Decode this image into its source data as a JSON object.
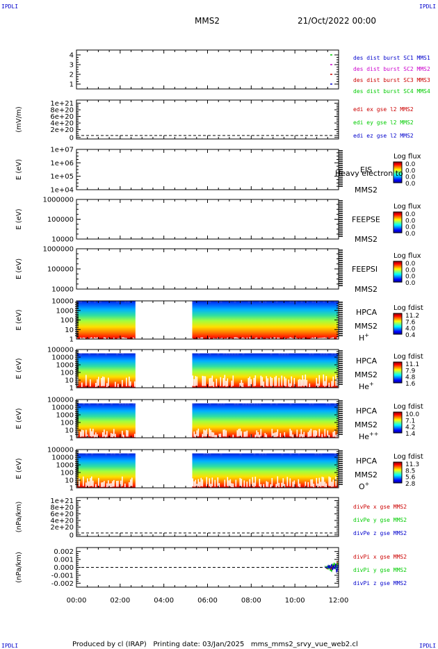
{
  "corner_labels": {
    "top_left": "IPDLI",
    "top_right": "IPDLI",
    "bottom_left": "IPDLI",
    "bottom_right": "IPDLI"
  },
  "header": {
    "spacecraft": "MMS2",
    "datetime": "21/Oct/2022 00:00"
  },
  "footer": {
    "text": "Produced by cl (IRAP)   Printing date: 03/Jan/2025   mms_mms2_srvy_vue_web2.cl"
  },
  "x_axis": {
    "ticks": [
      "00:00",
      "02:00",
      "04:00",
      "06:00",
      "08:00",
      "10:00",
      "12:00"
    ]
  },
  "colors": {
    "black": "#000000",
    "blue": "#0000cc",
    "magenta": "#cc00cc",
    "red": "#cc0000",
    "green": "#00cc00"
  },
  "chart_data": [
    {
      "id": "p1",
      "type": "line",
      "yticks": [
        "1",
        "2",
        "3",
        "4"
      ],
      "ylim": [
        0.5,
        4.5
      ],
      "legend": [
        {
          "label": "des dist burst SC1 MMS1",
          "color": "#0000cc"
        },
        {
          "label": "des dist burst SC2 MMS2",
          "color": "#cc00cc"
        },
        {
          "label": "des dist burst SC3 MMS3",
          "color": "#cc0000"
        },
        {
          "label": "des dist burst SC4 MMS4",
          "color": "#00cc00"
        }
      ]
    },
    {
      "id": "p2",
      "type": "line",
      "ylabel": "(mV/m)",
      "yticks": [
        "1e+21",
        "8e+20",
        "6e+20",
        "4e+20",
        "2e+20",
        "0"
      ],
      "legend": [
        {
          "label": "edi ex gse l2 MMS2",
          "color": "#cc0000"
        },
        {
          "label": "edi ey gse l2 MMS2",
          "color": "#00cc00"
        },
        {
          "label": "edi ez gse l2 MMS2",
          "color": "#0000cc"
        }
      ]
    },
    {
      "id": "p3",
      "type": "heatmap",
      "ylabel": "E (eV)",
      "yticks": [
        "1e+07",
        "1e+06",
        "1e+05",
        "1e+04"
      ],
      "instrument": "EIS",
      "sc": "MMS2",
      "overlay": "Heavy electron to",
      "cb_title": "Log flux",
      "cb_ticks": [
        "0.0",
        "0.0",
        "0.0",
        "0.0"
      ]
    },
    {
      "id": "p4",
      "type": "heatmap",
      "ylabel": "E (eV)",
      "yticks": [
        "1000000",
        "100000",
        "10000"
      ],
      "instrument": "FEEPSE",
      "sc": "MMS2",
      "cb_title": "Log flux",
      "cb_ticks": [
        "0.0",
        "0.0",
        "0.0",
        "0.0"
      ]
    },
    {
      "id": "p5",
      "type": "heatmap",
      "ylabel": "E (eV)",
      "yticks": [
        "1000000",
        "100000",
        "10000"
      ],
      "instrument": "FEEPSI",
      "sc": "MMS2",
      "cb_title": "Log flux",
      "cb_ticks": [
        "0.0",
        "0.0",
        "0.0",
        "0.0"
      ]
    },
    {
      "id": "p6",
      "type": "heatmap",
      "ylabel": "E (eV)",
      "yticks": [
        "10000",
        "1000",
        "100",
        "10",
        "1"
      ],
      "instrument": "HPCA",
      "sc": "MMS2",
      "species": "H",
      "species_sup": "+",
      "cb_title": "Log fdist",
      "cb_ticks": [
        "11.2",
        "7.6",
        "4.0",
        "0.4"
      ],
      "gap_hours": [
        2.7,
        5.3
      ]
    },
    {
      "id": "p7",
      "type": "heatmap",
      "ylabel": "E (eV)",
      "yticks": [
        "100000",
        "10000",
        "1000",
        "100",
        "10",
        "1"
      ],
      "instrument": "HPCA",
      "sc": "MMS2",
      "species": "He",
      "species_sup": "+",
      "cb_title": "Log fdist",
      "cb_ticks": [
        "11.1",
        "7.9",
        "4.8",
        "1.6"
      ],
      "gap_hours": [
        2.7,
        5.3
      ]
    },
    {
      "id": "p8",
      "type": "heatmap",
      "ylabel": "E (eV)",
      "yticks": [
        "100000",
        "10000",
        "1000",
        "100",
        "10",
        "1"
      ],
      "instrument": "HPCA",
      "sc": "MMS2",
      "species": "He",
      "species_sup": "++",
      "cb_title": "Log fdist",
      "cb_ticks": [
        "10.0",
        "7.1",
        "4.2",
        "1.4"
      ],
      "gap_hours": [
        2.7,
        5.3
      ]
    },
    {
      "id": "p9",
      "type": "heatmap",
      "ylabel": "E (eV)",
      "yticks": [
        "100000",
        "10000",
        "1000",
        "100",
        "10",
        "1"
      ],
      "instrument": "HPCA",
      "sc": "MMS2",
      "species": "O",
      "species_sup": "+",
      "cb_title": "Log fdist",
      "cb_ticks": [
        "11.3",
        "8.5",
        "5.6",
        "2.8"
      ],
      "gap_hours": [
        2.7,
        5.3
      ]
    },
    {
      "id": "p10",
      "type": "line",
      "ylabel": "(nPa/km)",
      "yticks": [
        "1e+21",
        "8e+20",
        "6e+20",
        "4e+20",
        "2e+20",
        "0"
      ],
      "legend": [
        {
          "label": "divPe x gse MMS2",
          "color": "#cc0000"
        },
        {
          "label": "divPe y gse MMS2",
          "color": "#00cc00"
        },
        {
          "label": "divPe z gse MMS2",
          "color": "#0000cc"
        }
      ]
    },
    {
      "id": "p11",
      "type": "line",
      "ylabel": "(nPa/km)",
      "yticks": [
        "0.002",
        "0.001",
        "0.000",
        "-0.001",
        "-0.002"
      ],
      "ylim": [
        -0.0025,
        0.0025
      ],
      "legend": [
        {
          "label": "divPi x gse MMS2",
          "color": "#cc0000"
        },
        {
          "label": "divPi y gse MMS2",
          "color": "#00cc00"
        },
        {
          "label": "divPi z gse MMS2",
          "color": "#0000cc"
        }
      ]
    }
  ]
}
